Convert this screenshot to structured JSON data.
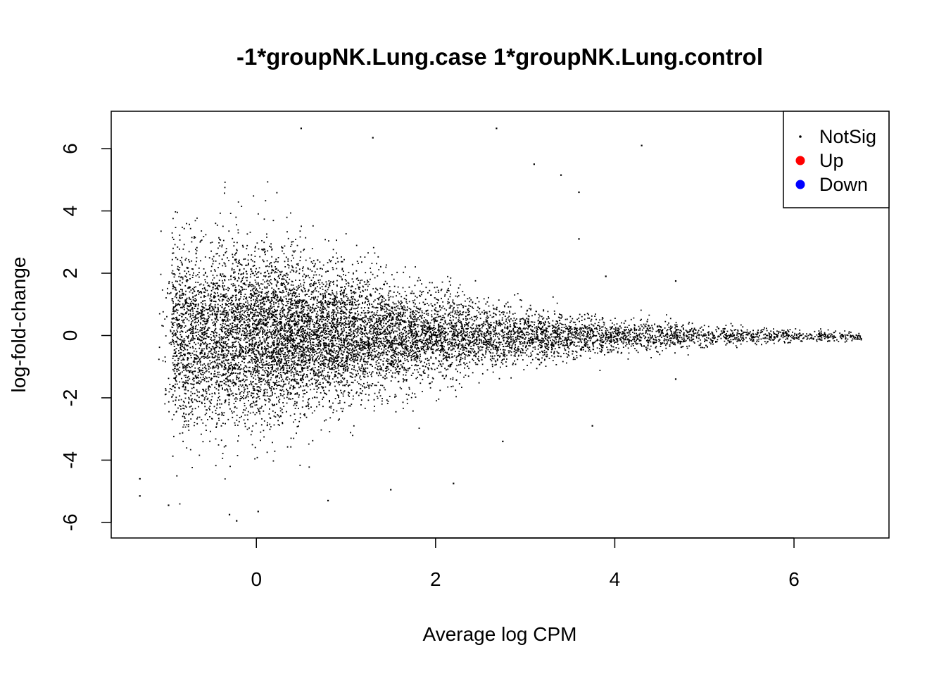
{
  "chart_data": {
    "type": "scatter",
    "title": "-1*groupNK.Lung.case 1*groupNK.Lung.control",
    "xlabel": "Average log CPM",
    "ylabel": "log-fold-change",
    "xlim": [
      -1.62,
      7.06
    ],
    "ylim": [
      -6.5,
      7.2
    ],
    "x_ticks": [
      0,
      2,
      4,
      6
    ],
    "x_tick_labels": [
      "0",
      "2",
      "4",
      "6"
    ],
    "y_ticks": [
      -6,
      -4,
      -2,
      0,
      2,
      4,
      6
    ],
    "y_tick_labels": [
      "-6",
      "-4",
      "-2",
      "0",
      "2",
      "4",
      "6"
    ],
    "grid": false,
    "legend_position": "top-right",
    "legend": [
      {
        "label": "NotSig",
        "color": "#000000",
        "marker": "small-dot"
      },
      {
        "label": "Up",
        "color": "#ff0000",
        "marker": "filled-circle"
      },
      {
        "label": "Down",
        "color": "#0000ff",
        "marker": "filled-circle"
      }
    ],
    "series": [
      {
        "name": "NotSig",
        "color": "#000000",
        "x_range": [
          -1.3,
          6.75
        ],
        "spread_profile": [
          {
            "x": -1.0,
            "sd": 1.6
          },
          {
            "x": 0.0,
            "sd": 1.6
          },
          {
            "x": 1.0,
            "sd": 1.2
          },
          {
            "x": 2.0,
            "sd": 0.8
          },
          {
            "x": 3.0,
            "sd": 0.5
          },
          {
            "x": 4.0,
            "sd": 0.3
          },
          {
            "x": 5.0,
            "sd": 0.2
          },
          {
            "x": 6.0,
            "sd": 0.12
          },
          {
            "x": 6.75,
            "sd": 0.08
          }
        ],
        "density_peak_x": 0.3,
        "outliers": [
          {
            "x": 2.68,
            "y": 6.65
          },
          {
            "x": 4.3,
            "y": 6.1
          },
          {
            "x": 0.5,
            "y": 6.65
          },
          {
            "x": 1.3,
            "y": 6.35
          },
          {
            "x": 3.1,
            "y": 5.5
          },
          {
            "x": 3.4,
            "y": 5.15
          },
          {
            "x": 3.6,
            "y": 4.6
          },
          {
            "x": 3.6,
            "y": 3.1
          },
          {
            "x": 3.9,
            "y": 1.9
          },
          {
            "x": 4.68,
            "y": 1.75
          },
          {
            "x": 4.68,
            "y": -1.4
          },
          {
            "x": 3.75,
            "y": -2.9
          },
          {
            "x": 2.75,
            "y": -3.4
          },
          {
            "x": 2.2,
            "y": -4.75
          },
          {
            "x": 1.5,
            "y": -4.95
          },
          {
            "x": 0.8,
            "y": -5.3
          },
          {
            "x": 0.02,
            "y": -5.65
          },
          {
            "x": -0.22,
            "y": -5.95
          },
          {
            "x": -0.3,
            "y": -5.75
          },
          {
            "x": -0.98,
            "y": -5.45
          },
          {
            "x": -1.3,
            "y": -5.15
          },
          {
            "x": -1.3,
            "y": -4.6
          }
        ]
      },
      {
        "name": "Up",
        "color": "#ff0000",
        "points": []
      },
      {
        "name": "Down",
        "color": "#0000ff",
        "points": []
      }
    ]
  }
}
